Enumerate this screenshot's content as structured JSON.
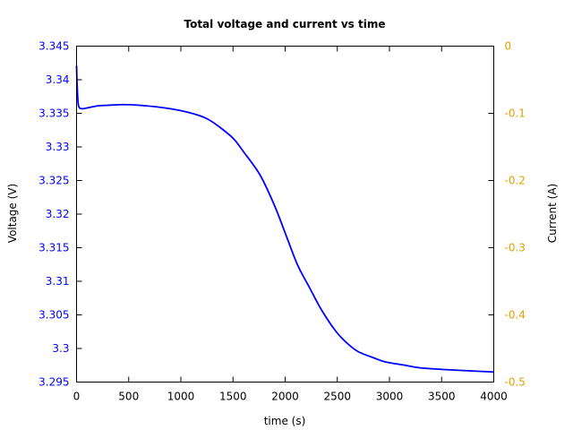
{
  "chart_data": {
    "type": "line",
    "title": "Total voltage and current vs time",
    "xlabel": "time (s)",
    "ylabel": "Voltage (V)",
    "y2label": "Current (A)",
    "xlim": [
      0,
      4000
    ],
    "ylim": [
      3.295,
      3.345
    ],
    "y2lim": [
      -0.5,
      0
    ],
    "grid": false,
    "xticks": [
      "0",
      "500",
      "1000",
      "1500",
      "2000",
      "2500",
      "3000",
      "3500",
      "4000"
    ],
    "xtick_values": [
      0,
      500,
      1000,
      1500,
      2000,
      2500,
      3000,
      3500,
      4000
    ],
    "yticks": [
      "3.345",
      "3.34",
      "3.335",
      "3.33",
      "3.325",
      "3.32",
      "3.315",
      "3.31",
      "3.305",
      "3.3",
      "3.295"
    ],
    "ytick_values": [
      3.345,
      3.34,
      3.335,
      3.33,
      3.325,
      3.32,
      3.315,
      3.31,
      3.305,
      3.3,
      3.295
    ],
    "y2ticks": [
      "0",
      "-0.1",
      "-0.2",
      "-0.3",
      "-0.4",
      "-0.5"
    ],
    "y2tick_values": [
      0,
      -0.1,
      -0.2,
      -0.3,
      -0.4,
      -0.5
    ],
    "colors": {
      "voltage": "#0000ff",
      "right_axis": "#e69f00",
      "left_axis": "#0000ff"
    },
    "series": [
      {
        "name": "Voltage",
        "x": [
          0,
          5,
          15,
          30,
          45,
          70,
          100,
          200,
          300,
          450,
          600,
          800,
          1000,
          1150,
          1250,
          1350,
          1500,
          1600,
          1760,
          1900,
          2017,
          2120,
          2232,
          2350,
          2489,
          2600,
          2704,
          2850,
          2961,
          3150,
          3305,
          3600,
          4000
        ],
        "y": [
          3.3421,
          3.3395,
          3.3365,
          3.3358,
          3.3357,
          3.3357,
          3.3358,
          3.3361,
          3.3362,
          3.3363,
          3.3362,
          3.3359,
          3.3354,
          3.3348,
          3.3342,
          3.3332,
          3.3313,
          3.3293,
          3.3258,
          3.3212,
          3.3165,
          3.3124,
          3.3091,
          3.3057,
          3.3025,
          3.3007,
          3.2995,
          3.2986,
          3.298,
          3.2975,
          3.2971,
          3.2968,
          3.2965
        ]
      }
    ]
  }
}
